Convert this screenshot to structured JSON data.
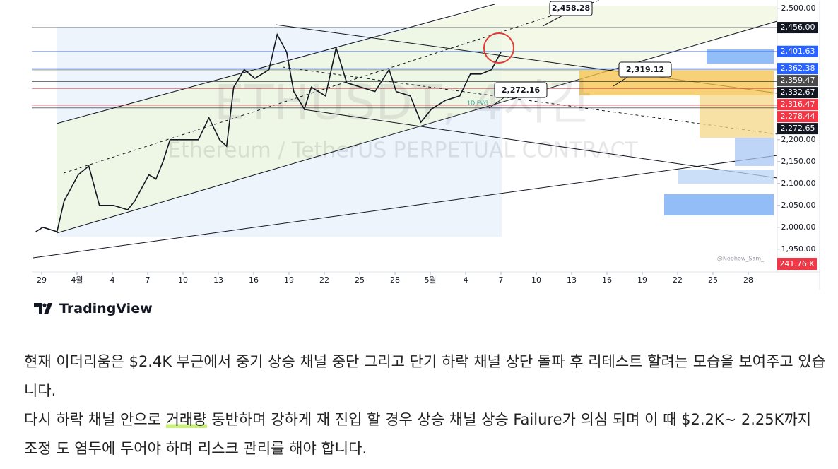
{
  "chart_data": {
    "type": "line",
    "watermark": "ETHUSDT, 4시간",
    "subtitle": "Ethereum / TetherUS PERPETUAL CONTRACT",
    "x": [
      -0.5,
      0.1,
      1.3,
      1.9,
      3.1,
      4.0,
      4.9,
      6.1,
      7.3,
      7.9,
      9.1,
      9.7,
      10.3,
      10.9,
      12.1,
      13.3,
      14.2,
      15.1,
      15.7,
      16.3,
      17.2,
      18.1,
      19.3,
      20.0,
      20.8,
      21.4,
      22.3,
      22.9,
      24.1,
      25.0,
      25.9,
      27.1,
      28.3,
      29.5,
      30.1,
      31.3,
      32.2,
      33.1,
      34.3,
      35.5,
      36.4,
      37.3,
      38.2,
      39.0
    ],
    "series": [
      {
        "color": "#131722",
        "values": [
          1990,
          2000,
          1990,
          2060,
          2120,
          2140,
          2050,
          2050,
          2040,
          2060,
          2120,
          2110,
          2150,
          2200,
          2200,
          2200,
          2250,
          2200,
          2185,
          2320,
          2360,
          2340,
          2360,
          2440,
          2400,
          2310,
          2270,
          2320,
          2300,
          2410,
          2330,
          2320,
          2310,
          2360,
          2310,
          2300,
          2240,
          2270,
          2290,
          2300,
          2350,
          2350,
          2360,
          2400
        ]
      }
    ],
    "xlim": [
      -0.84,
      62.46
    ],
    "xticks": [
      {
        "value": 0,
        "label": "29"
      },
      {
        "value": 3,
        "label": "4월"
      },
      {
        "value": 6,
        "label": "4"
      },
      {
        "value": 9,
        "label": "7"
      },
      {
        "value": 12,
        "label": "10"
      },
      {
        "value": 15,
        "label": "13"
      },
      {
        "value": 18,
        "label": "16"
      },
      {
        "value": 21,
        "label": "19"
      },
      {
        "value": 24,
        "label": "22"
      },
      {
        "value": 27,
        "label": "25"
      },
      {
        "value": 30,
        "label": "28"
      },
      {
        "value": 33,
        "label": "5월"
      },
      {
        "value": 36,
        "label": "4"
      },
      {
        "value": 39,
        "label": "7"
      },
      {
        "value": 42,
        "label": "10"
      },
      {
        "value": 45,
        "label": "13"
      },
      {
        "value": 48,
        "label": "16"
      },
      {
        "value": 51,
        "label": "19"
      },
      {
        "value": 54,
        "label": "22"
      },
      {
        "value": 57,
        "label": "25"
      },
      {
        "value": 60,
        "label": "28"
      }
    ],
    "ylim": [
      1898,
      2519
    ],
    "yticks": [
      {
        "value": 1950,
        "label": "1,950.00"
      },
      {
        "value": 2000,
        "label": "2,000.00"
      },
      {
        "value": 2050,
        "label": "2,050.00"
      },
      {
        "value": 2100,
        "label": "2,100.00"
      },
      {
        "value": 2150,
        "label": "2,150.00"
      },
      {
        "value": 2200,
        "label": "2,200.00"
      },
      {
        "value": 2500,
        "label": "2,500.00"
      }
    ],
    "price_tags": [
      {
        "value": 2456,
        "label": "2,456.00",
        "color": "#131722"
      },
      {
        "value": 2401.63,
        "label": "2,401.63",
        "color": "#2962ff"
      },
      {
        "value": 2362.38,
        "label": "2,362.38",
        "color": "#2962ff"
      },
      {
        "value": 2359.47,
        "label": "2,359.47",
        "color": "#4a4a4a"
      },
      {
        "value": 2332.67,
        "label": "2,332.67",
        "color": "#131722"
      },
      {
        "value": 2316.47,
        "label": "2,316.47",
        "color": "#f23645"
      },
      {
        "value": 2278.44,
        "label": "2,278.44",
        "color": "#f23645"
      },
      {
        "value": 2272.65,
        "label": "2,272.65",
        "color": "#131722"
      }
    ],
    "volume_tag": "241.76 K",
    "callouts": [
      "2,458.28",
      "2,319.12",
      "2,272.16"
    ],
    "fvg_label": "1D FVG",
    "credit": "@Nephew_Sam_"
  },
  "brand": "TradingView",
  "article": {
    "paragraph1": "현재 이더리움은 $2.4K 부근에서 중기 상승 채널 중단 그리고 단기 하락 채널 상단 돌파 후 리테스트 할려는 모습을 보여주고 있습니다.",
    "paragraph2": [
      "다시 하락 채널 안으로 ",
      "거래량",
      " 동반하며 강하게 재 진입 할 경우 상승 채널 상승 Failure가 의심 되며 이 때 $2.2K~ 2.25K까지 조정 도 염두에 두어야 하며 리스크 관리를 해야 합니다."
    ]
  }
}
